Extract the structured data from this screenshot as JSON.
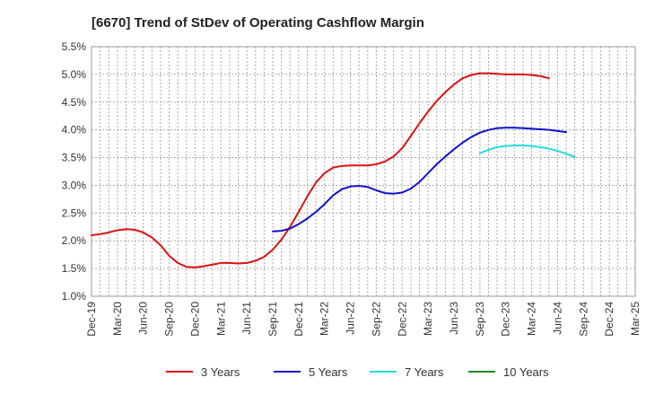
{
  "chart_data": {
    "type": "line",
    "title": "[6670]  Trend of StDev of Operating Cashflow Margin",
    "xlabel": "",
    "ylabel": "",
    "ylim": [
      1.0,
      5.5
    ],
    "y_ticks": [
      "1.0%",
      "1.5%",
      "2.0%",
      "2.5%",
      "3.0%",
      "3.5%",
      "4.0%",
      "4.5%",
      "5.0%",
      "5.5%"
    ],
    "y_tick_values": [
      1.0,
      1.5,
      2.0,
      2.5,
      3.0,
      3.5,
      4.0,
      4.5,
      5.0,
      5.5
    ],
    "x_ticks": [
      "Dec-19",
      "Mar-20",
      "Jun-20",
      "Sep-20",
      "Dec-20",
      "Mar-21",
      "Jun-21",
      "Sep-21",
      "Dec-21",
      "Mar-22",
      "Jun-22",
      "Sep-22",
      "Dec-22",
      "Mar-23",
      "Jun-23",
      "Sep-23",
      "Dec-23",
      "Mar-24",
      "Jun-24",
      "Sep-24",
      "Dec-24",
      "Mar-25"
    ],
    "grid": true,
    "legend_position": "bottom",
    "series": [
      {
        "name": "3 Years",
        "color": "#dd1111",
        "start_index": 0,
        "values": [
          2.1,
          2.12,
          2.15,
          2.19,
          2.21,
          2.2,
          2.15,
          2.06,
          1.92,
          1.73,
          1.6,
          1.53,
          1.52,
          1.54,
          1.57,
          1.6,
          1.6,
          1.59,
          1.6,
          1.64,
          1.71,
          1.84,
          2.02,
          2.25,
          2.52,
          2.8,
          3.05,
          3.22,
          3.32,
          3.35,
          3.36,
          3.36,
          3.36,
          3.38,
          3.43,
          3.52,
          3.67,
          3.89,
          4.12,
          4.33,
          4.52,
          4.68,
          4.82,
          4.93,
          4.99,
          5.02,
          5.02,
          5.01,
          5.0,
          5.0,
          5.0,
          4.99,
          4.97,
          4.93
        ]
      },
      {
        "name": "5 Years",
        "color": "#1111cc",
        "start_index": 21,
        "values": [
          2.17,
          2.18,
          2.22,
          2.3,
          2.4,
          2.52,
          2.66,
          2.82,
          2.93,
          2.98,
          2.99,
          2.97,
          2.91,
          2.86,
          2.85,
          2.87,
          2.94,
          3.06,
          3.22,
          3.38,
          3.52,
          3.65,
          3.77,
          3.87,
          3.95,
          4.0,
          4.03,
          4.04,
          4.04,
          4.03,
          4.02,
          4.01,
          4.0,
          3.98,
          3.96
        ]
      },
      {
        "name": "7 Years",
        "color": "#22dddd",
        "start_index": 45,
        "values": [
          3.58,
          3.64,
          3.69,
          3.71,
          3.72,
          3.72,
          3.71,
          3.69,
          3.66,
          3.62,
          3.57,
          3.51
        ]
      },
      {
        "name": "10 Years",
        "color": "#228822",
        "start_index": 0,
        "values": []
      }
    ]
  }
}
